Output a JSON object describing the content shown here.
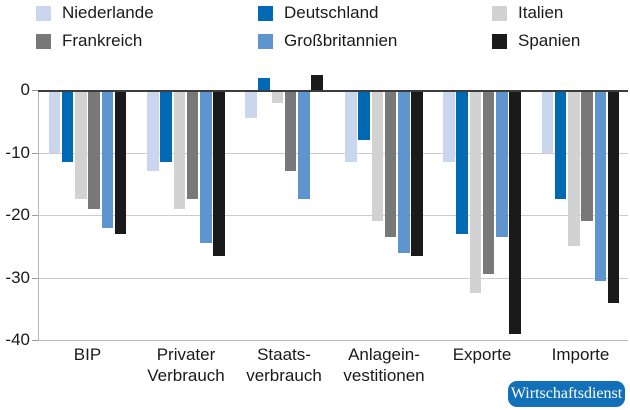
{
  "chart_data": {
    "type": "bar",
    "title": "",
    "categories": [
      "BIP",
      "Privater Verbrauch",
      "Staatsverbrauch",
      "Anlageinvestitionen",
      "Exporte",
      "Importe"
    ],
    "categories_display": [
      [
        "BIP"
      ],
      [
        "Privater",
        "Verbrauch"
      ],
      [
        "Staats-",
        "verbrauch"
      ],
      [
        "Anlagein-",
        "vestitionen"
      ],
      [
        "Exporte"
      ],
      [
        "Importe"
      ]
    ],
    "series": [
      {
        "name": "Niederlande",
        "color": "#c9d6ee",
        "values": [
          -10,
          -13,
          -4.5,
          -11.5,
          -11.5,
          -10
        ]
      },
      {
        "name": "Deutschland",
        "color": "#0069b4",
        "values": [
          -11.5,
          -11.5,
          2,
          -8,
          -23,
          -17.5
        ]
      },
      {
        "name": "Italien",
        "color": "#d2d2d2",
        "values": [
          -17.5,
          -19,
          -2,
          -21,
          -32.5,
          -25
        ]
      },
      {
        "name": "Frankreich",
        "color": "#787878",
        "values": [
          -19,
          -17.5,
          -13,
          -23.5,
          -29.5,
          -21
        ]
      },
      {
        "name": "Großbritannien",
        "color": "#5e95ce",
        "values": [
          -22,
          -24.5,
          -17.5,
          -26,
          -23.5,
          -30.5
        ]
      },
      {
        "name": "Spanien",
        "color": "#1a1a1a",
        "values": [
          -23,
          -26.5,
          2.4,
          -26.5,
          -39,
          -34
        ]
      }
    ],
    "ylim": [
      -40,
      4.5
    ],
    "yticks": [
      0,
      -10,
      -20,
      -30,
      -40
    ],
    "gridlines_at": [
      -10,
      -20,
      -30
    ],
    "grid": true,
    "legend_position": "top",
    "legend_rows": [
      [
        "Niederlande",
        "Deutschland",
        "Italien"
      ],
      [
        "Frankreich",
        "Großbritannien",
        "Spanien"
      ]
    ]
  },
  "footer": {
    "badge": "Wirtschaftsdienst",
    "badge_color": "#1270b8"
  }
}
